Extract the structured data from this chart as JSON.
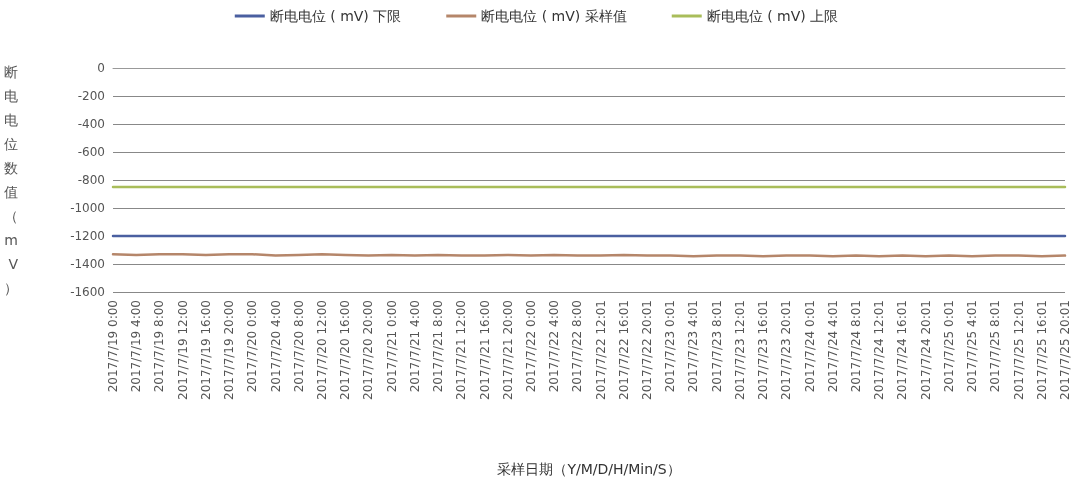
{
  "chart_data": {
    "type": "line",
    "xlabel": "采样日期（Y/M/D/H/Min/S）",
    "ylabel": "断电电位数值（mV）",
    "categories": [
      "2017/7/19 0:00",
      "2017/7/19 4:00",
      "2017/7/19 8:00",
      "2017/7/19 12:00",
      "2017/7/19 16:00",
      "2017/7/19 20:00",
      "2017/7/20 0:00",
      "2017/7/20 4:00",
      "2017/7/20 8:00",
      "2017/7/20 12:00",
      "2017/7/20 16:00",
      "2017/7/20 20:00",
      "2017/7/21 0:00",
      "2017/7/21 4:00",
      "2017/7/21 8:00",
      "2017/7/21 12:00",
      "2017/7/21 16:00",
      "2017/7/21 20:00",
      "2017/7/22 0:00",
      "2017/7/22 4:00",
      "2017/7/22 8:00",
      "2017/7/22 12:01",
      "2017/7/22 16:01",
      "2017/7/22 20:01",
      "2017/7/23 0:01",
      "2017/7/23 4:01",
      "2017/7/23 8:01",
      "2017/7/23 12:01",
      "2017/7/23 16:01",
      "2017/7/23 20:01",
      "2017/7/24 0:01",
      "2017/7/24 4:01",
      "2017/7/24 8:01",
      "2017/7/24 12:01",
      "2017/7/24 16:01",
      "2017/7/24 20:01",
      "2017/7/25 0:01",
      "2017/7/25 4:01",
      "2017/7/25 8:01",
      "2017/7/25 12:01",
      "2017/7/25 16:01",
      "2017/7/25 20:01"
    ],
    "series": [
      {
        "name": "断电电位 ( mV) 下限",
        "color": "#4a5fa0",
        "values": [
          -1200,
          -1200,
          -1200,
          -1200,
          -1200,
          -1200,
          -1200,
          -1200,
          -1200,
          -1200,
          -1200,
          -1200,
          -1200,
          -1200,
          -1200,
          -1200,
          -1200,
          -1200,
          -1200,
          -1200,
          -1200,
          -1200,
          -1200,
          -1200,
          -1200,
          -1200,
          -1200,
          -1200,
          -1200,
          -1200,
          -1200,
          -1200,
          -1200,
          -1200,
          -1200,
          -1200,
          -1200,
          -1200,
          -1200,
          -1200,
          -1200,
          -1200
        ]
      },
      {
        "name": "断电电位 ( mV) 采样值",
        "color": "#b5866a",
        "values": [
          -1330,
          -1335,
          -1330,
          -1330,
          -1335,
          -1330,
          -1330,
          -1340,
          -1335,
          -1330,
          -1335,
          -1340,
          -1335,
          -1340,
          -1335,
          -1340,
          -1340,
          -1335,
          -1340,
          -1335,
          -1340,
          -1340,
          -1335,
          -1340,
          -1340,
          -1345,
          -1340,
          -1340,
          -1345,
          -1340,
          -1340,
          -1345,
          -1340,
          -1345,
          -1340,
          -1345,
          -1340,
          -1345,
          -1340,
          -1340,
          -1345,
          -1340
        ]
      },
      {
        "name": "断电电位 ( mV) 上限",
        "color": "#a9bd5a",
        "values": [
          -850,
          -850,
          -850,
          -850,
          -850,
          -850,
          -850,
          -850,
          -850,
          -850,
          -850,
          -850,
          -850,
          -850,
          -850,
          -850,
          -850,
          -850,
          -850,
          -850,
          -850,
          -850,
          -850,
          -850,
          -850,
          -850,
          -850,
          -850,
          -850,
          -850,
          -850,
          -850,
          -850,
          -850,
          -850,
          -850,
          -850,
          -850,
          -850,
          -850,
          -850,
          -850
        ]
      }
    ],
    "ylim": [
      -1600,
      0
    ],
    "yticks": [
      0,
      -200,
      -400,
      -600,
      -800,
      -1000,
      -1200,
      -1400,
      -1600
    ],
    "grid": "y",
    "legend": "top",
    "marker": "none",
    "line_style": "solid"
  }
}
